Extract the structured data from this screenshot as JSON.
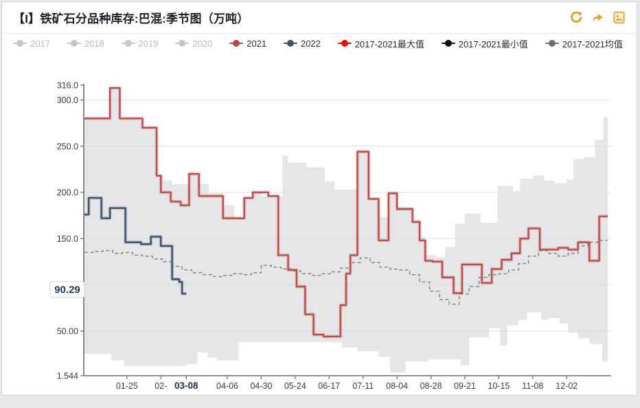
{
  "header": {
    "title": "【I】铁矿石分品种库存:巴混:季节图（万吨）",
    "icons": [
      {
        "key": "refresh",
        "name": "refresh-icon",
        "color": "#ef9b2d"
      },
      {
        "key": "share",
        "name": "share-icon",
        "color": "#ef9b2d"
      },
      {
        "key": "export-image",
        "name": "export-image-icon",
        "color": "#ef9b2d"
      }
    ]
  },
  "legend": {
    "items": [
      {
        "key": "2017",
        "label": "2017",
        "color": "#c6c6c6",
        "disabled": true
      },
      {
        "key": "2018",
        "label": "2018",
        "color": "#c6c6c6",
        "disabled": true
      },
      {
        "key": "2019",
        "label": "2019",
        "color": "#c6c6c6",
        "disabled": true
      },
      {
        "key": "2020",
        "label": "2020",
        "color": "#c6c6c6",
        "disabled": true
      },
      {
        "key": "2021",
        "label": "2021",
        "color": "#b04a48",
        "disabled": false
      },
      {
        "key": "2022",
        "label": "2022",
        "color": "#3d5468",
        "disabled": false
      },
      {
        "key": "max",
        "label": "2017-2021最大值",
        "color": "#e8110e",
        "disabled": false
      },
      {
        "key": "min",
        "label": "2017-2021最小值",
        "color": "#111111",
        "disabled": false
      },
      {
        "key": "mean",
        "label": "2017-2021均值",
        "color": "#6f6f6f",
        "disabled": false
      }
    ]
  },
  "chart_data": {
    "type": "line",
    "title": "铁矿石分品种库存:巴混:季节图",
    "units": "万吨",
    "current_value_label": "90.29",
    "current_value": 90.29,
    "band": {
      "fill": "#e6e6e8",
      "top_series": "2017-2021最大值",
      "bottom_series": "2017-2021最小值"
    },
    "y_axis": {
      "min": 1.544,
      "max": 316,
      "ticks": [
        {
          "label": "316.0",
          "v": 316,
          "grid": false
        },
        {
          "label": "300.0",
          "v": 300,
          "grid": true
        },
        {
          "label": "250.0",
          "v": 250,
          "grid": true
        },
        {
          "label": "200.0",
          "v": 200,
          "grid": true
        },
        {
          "label": "150.0",
          "v": 150,
          "grid": true
        },
        {
          "label": "100.0",
          "v": 100,
          "grid": true
        },
        {
          "label": "50.00",
          "v": 50,
          "grid": true
        },
        {
          "label": "1.544",
          "v": 1.544,
          "grid": false
        }
      ]
    },
    "x_axis": {
      "start_day": -6.5,
      "end_day": 364.5,
      "ticks": [
        {
          "label": "01-25",
          "day": 24,
          "bold": false
        },
        {
          "label": "02-",
          "day": 48,
          "bold": false
        },
        {
          "label": "03-08",
          "day": 66,
          "bold": true
        },
        {
          "label": "04-06",
          "day": 95,
          "bold": false
        },
        {
          "label": "04-30",
          "day": 119,
          "bold": false
        },
        {
          "label": "05-24",
          "day": 143,
          "bold": false
        },
        {
          "label": "06-17",
          "day": 167,
          "bold": false
        },
        {
          "label": "07-11",
          "day": 191,
          "bold": false
        },
        {
          "label": "08-04",
          "day": 215,
          "bold": false
        },
        {
          "label": "08-28",
          "day": 239,
          "bold": false
        },
        {
          "label": "09-21",
          "day": 263,
          "bold": false
        },
        {
          "label": "10-15",
          "day": 287,
          "bold": false
        },
        {
          "label": "11-08",
          "day": 311,
          "bold": false
        },
        {
          "label": "12-02",
          "day": 335,
          "bold": false
        }
      ]
    },
    "series": [
      {
        "name": "2021",
        "style": "step-line",
        "color": "#bc4b47",
        "end_day": 364,
        "points": [
          [
            -6,
            280
          ],
          [
            12,
            313
          ],
          [
            19,
            280
          ],
          [
            35,
            270
          ],
          [
            45,
            218
          ],
          [
            48,
            200
          ],
          [
            55,
            190
          ],
          [
            62,
            186
          ],
          [
            68,
            220
          ],
          [
            75,
            196
          ],
          [
            92,
            172
          ],
          [
            107,
            194
          ],
          [
            113,
            200
          ],
          [
            124,
            196
          ],
          [
            131,
            132
          ],
          [
            138,
            116
          ],
          [
            144,
            98
          ],
          [
            150,
            68
          ],
          [
            156,
            46
          ],
          [
            163,
            44
          ],
          [
            175,
            78
          ],
          [
            179,
            112
          ],
          [
            182,
            132
          ],
          [
            187,
            244
          ],
          [
            195,
            193
          ],
          [
            202,
            148
          ],
          [
            209,
            199
          ],
          [
            215,
            182
          ],
          [
            226,
            168
          ],
          [
            231,
            148
          ],
          [
            235,
            126
          ],
          [
            240,
            125
          ],
          [
            247,
            108
          ],
          [
            255,
            91
          ],
          [
            261,
            122
          ],
          [
            275,
            102
          ],
          [
            282,
            117
          ],
          [
            289,
            127
          ],
          [
            296,
            134
          ],
          [
            302,
            150
          ],
          [
            308,
            161
          ],
          [
            316,
            138
          ],
          [
            329,
            140
          ],
          [
            336,
            138
          ],
          [
            343,
            146
          ],
          [
            351,
            126
          ],
          [
            358,
            174
          ]
        ]
      },
      {
        "name": "2022",
        "style": "step-line",
        "color": "#3d5468",
        "end_day": 66,
        "last_value": 90.29,
        "points": [
          [
            -6,
            176
          ],
          [
            -3,
            194
          ],
          [
            6,
            172
          ],
          [
            12,
            183
          ],
          [
            23,
            146
          ],
          [
            34,
            144
          ],
          [
            41,
            152
          ],
          [
            48,
            142
          ],
          [
            56,
            106
          ],
          [
            61,
            103
          ],
          [
            63,
            90.29
          ]
        ]
      },
      {
        "name": "2017-2021最大值",
        "style": "band-top",
        "color": "#e8110e",
        "end_day": 364,
        "points": [
          [
            -6,
            280
          ],
          [
            12,
            313
          ],
          [
            19,
            280
          ],
          [
            35,
            270
          ],
          [
            45,
            218
          ],
          [
            50,
            213
          ],
          [
            56,
            209
          ],
          [
            68,
            221
          ],
          [
            75,
            209
          ],
          [
            82,
            199
          ],
          [
            92,
            186
          ],
          [
            100,
            172
          ],
          [
            107,
            194
          ],
          [
            113,
            201
          ],
          [
            119,
            196
          ],
          [
            134,
            240
          ],
          [
            138,
            232
          ],
          [
            151,
            227
          ],
          [
            164,
            212
          ],
          [
            171,
            203
          ],
          [
            187,
            246
          ],
          [
            195,
            193
          ],
          [
            202,
            173
          ],
          [
            209,
            200
          ],
          [
            215,
            184
          ],
          [
            226,
            170
          ],
          [
            231,
            152
          ],
          [
            235,
            132
          ],
          [
            242,
            130
          ],
          [
            249,
            141
          ],
          [
            256,
            166
          ],
          [
            263,
            177
          ],
          [
            274,
            167
          ],
          [
            286,
            207
          ],
          [
            297,
            201
          ],
          [
            302,
            215
          ],
          [
            311,
            218
          ],
          [
            319,
            213
          ],
          [
            326,
            210
          ],
          [
            335,
            214
          ],
          [
            340,
            236
          ],
          [
            347,
            238
          ],
          [
            355,
            257
          ],
          [
            361,
            281
          ]
        ]
      },
      {
        "name": "2017-2021最小值",
        "style": "band-bottom",
        "color": "#111111",
        "end_day": 364,
        "points": [
          [
            -6,
            25
          ],
          [
            13,
            18
          ],
          [
            22,
            12
          ],
          [
            66,
            14
          ],
          [
            74,
            27
          ],
          [
            81,
            21
          ],
          [
            88,
            18
          ],
          [
            103,
            38
          ],
          [
            176,
            32
          ],
          [
            187,
            28
          ],
          [
            202,
            22
          ],
          [
            210,
            5
          ],
          [
            221,
            17
          ],
          [
            237,
            19
          ],
          [
            260,
            13
          ],
          [
            266,
            43
          ],
          [
            280,
            53
          ],
          [
            288,
            34
          ],
          [
            293,
            56
          ],
          [
            301,
            62
          ],
          [
            307,
            70
          ],
          [
            317,
            62
          ],
          [
            322,
            64
          ],
          [
            330,
            58
          ],
          [
            336,
            48
          ],
          [
            343,
            42
          ],
          [
            351,
            36
          ],
          [
            360,
            17
          ]
        ]
      },
      {
        "name": "2017-2021均值",
        "style": "dashed-step",
        "color": "#8c8c8c",
        "end_day": 364,
        "points": [
          [
            -6,
            135
          ],
          [
            0,
            136
          ],
          [
            7,
            137
          ],
          [
            14,
            134
          ],
          [
            21,
            135
          ],
          [
            28,
            132
          ],
          [
            35,
            131
          ],
          [
            42,
            128
          ],
          [
            49,
            125
          ],
          [
            56,
            120
          ],
          [
            63,
            116
          ],
          [
            70,
            113
          ],
          [
            77,
            111
          ],
          [
            84,
            109
          ],
          [
            91,
            110
          ],
          [
            98,
            112
          ],
          [
            105,
            111
          ],
          [
            112,
            113
          ],
          [
            119,
            121
          ],
          [
            126,
            119
          ],
          [
            133,
            117
          ],
          [
            140,
            115
          ],
          [
            147,
            112
          ],
          [
            154,
            110
          ],
          [
            161,
            112
          ],
          [
            168,
            114
          ],
          [
            175,
            118
          ],
          [
            182,
            124
          ],
          [
            189,
            129
          ],
          [
            196,
            124
          ],
          [
            203,
            119
          ],
          [
            210,
            117
          ],
          [
            217,
            116
          ],
          [
            224,
            111
          ],
          [
            231,
            103
          ],
          [
            238,
            93
          ],
          [
            245,
            84
          ],
          [
            252,
            79
          ],
          [
            259,
            90
          ],
          [
            266,
            98
          ],
          [
            273,
            108
          ],
          [
            280,
            111
          ],
          [
            287,
            112
          ],
          [
            294,
            116
          ],
          [
            301,
            123
          ],
          [
            308,
            131
          ],
          [
            315,
            137
          ],
          [
            322,
            134
          ],
          [
            329,
            131
          ],
          [
            336,
            134
          ],
          [
            343,
            142
          ],
          [
            350,
            146
          ],
          [
            357,
            148
          ]
        ]
      }
    ]
  }
}
